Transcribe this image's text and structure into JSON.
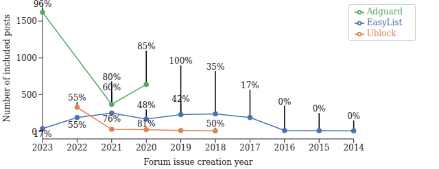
{
  "chart_data": {
    "type": "line",
    "x_label": "Forum issue creation year",
    "y_label": "Number of included posts",
    "categories": [
      "2023",
      "2022",
      "2021",
      "2020",
      "2019",
      "2018",
      "2017",
      "2016",
      "2015",
      "2014"
    ],
    "series": [
      {
        "name": "EasyList",
        "color": "#4c72b0",
        "marker": "o",
        "values": [
          40,
          190,
          250,
          170,
          230,
          240,
          190,
          15,
          12,
          10
        ]
      },
      {
        "name": "Ublock",
        "color": "#dd8452",
        "marker": "o",
        "values": [
          null,
          330,
          30,
          25,
          15,
          10,
          null,
          null,
          null,
          null
        ]
      },
      {
        "name": "Adguard",
        "color": "#55a868",
        "marker": "o",
        "values": [
          1620,
          null,
          370,
          640,
          null,
          null,
          null,
          null,
          null,
          null
        ]
      }
    ],
    "ylim": [
      -100,
      1750
    ],
    "yticks": [
      0,
      500,
      1000,
      1500
    ],
    "grid": false,
    "legend": "upper right",
    "annotations": [
      {
        "x": "2023",
        "y": 1680,
        "text": "96%",
        "series": "Adguard"
      },
      {
        "x": "2023",
        "y": -90,
        "text": "17%",
        "series": "EasyList"
      },
      {
        "x": "2022",
        "y": 400,
        "text": "55%",
        "series": "Ublock"
      },
      {
        "x": "2022",
        "y": 30,
        "text": "55%",
        "series": "EasyList"
      },
      {
        "x": "2021",
        "y": 680,
        "text": "80%",
        "series": "Adguard"
      },
      {
        "x": "2021",
        "y": 540,
        "text": "60%",
        "series": "Adguard"
      },
      {
        "x": "2021",
        "y": 110,
        "text": "76%",
        "series": "EasyList"
      },
      {
        "x": "2020",
        "y": 1100,
        "text": "85%",
        "series": "Adguard"
      },
      {
        "x": "2020",
        "y": 300,
        "text": "48%",
        "series": "EasyList"
      },
      {
        "x": "2020",
        "y": 50,
        "text": "81%",
        "series": "Ublock"
      },
      {
        "x": "2019",
        "y": 900,
        "text": "100%",
        "series": "EasyList"
      },
      {
        "x": "2019",
        "y": 380,
        "text": "42%",
        "series": "EasyList"
      },
      {
        "x": "2018",
        "y": 820,
        "text": "35%",
        "series": "EasyList"
      },
      {
        "x": "2018",
        "y": 50,
        "text": "50%",
        "series": "Ublock"
      },
      {
        "x": "2017",
        "y": 570,
        "text": "17%",
        "series": "EasyList"
      },
      {
        "x": "2016",
        "y": 350,
        "text": "0%",
        "series": "EasyList"
      },
      {
        "x": "2015",
        "y": 250,
        "text": "0%",
        "series": "EasyList"
      },
      {
        "x": "2014",
        "y": 150,
        "text": "0%",
        "series": "EasyList"
      }
    ]
  }
}
